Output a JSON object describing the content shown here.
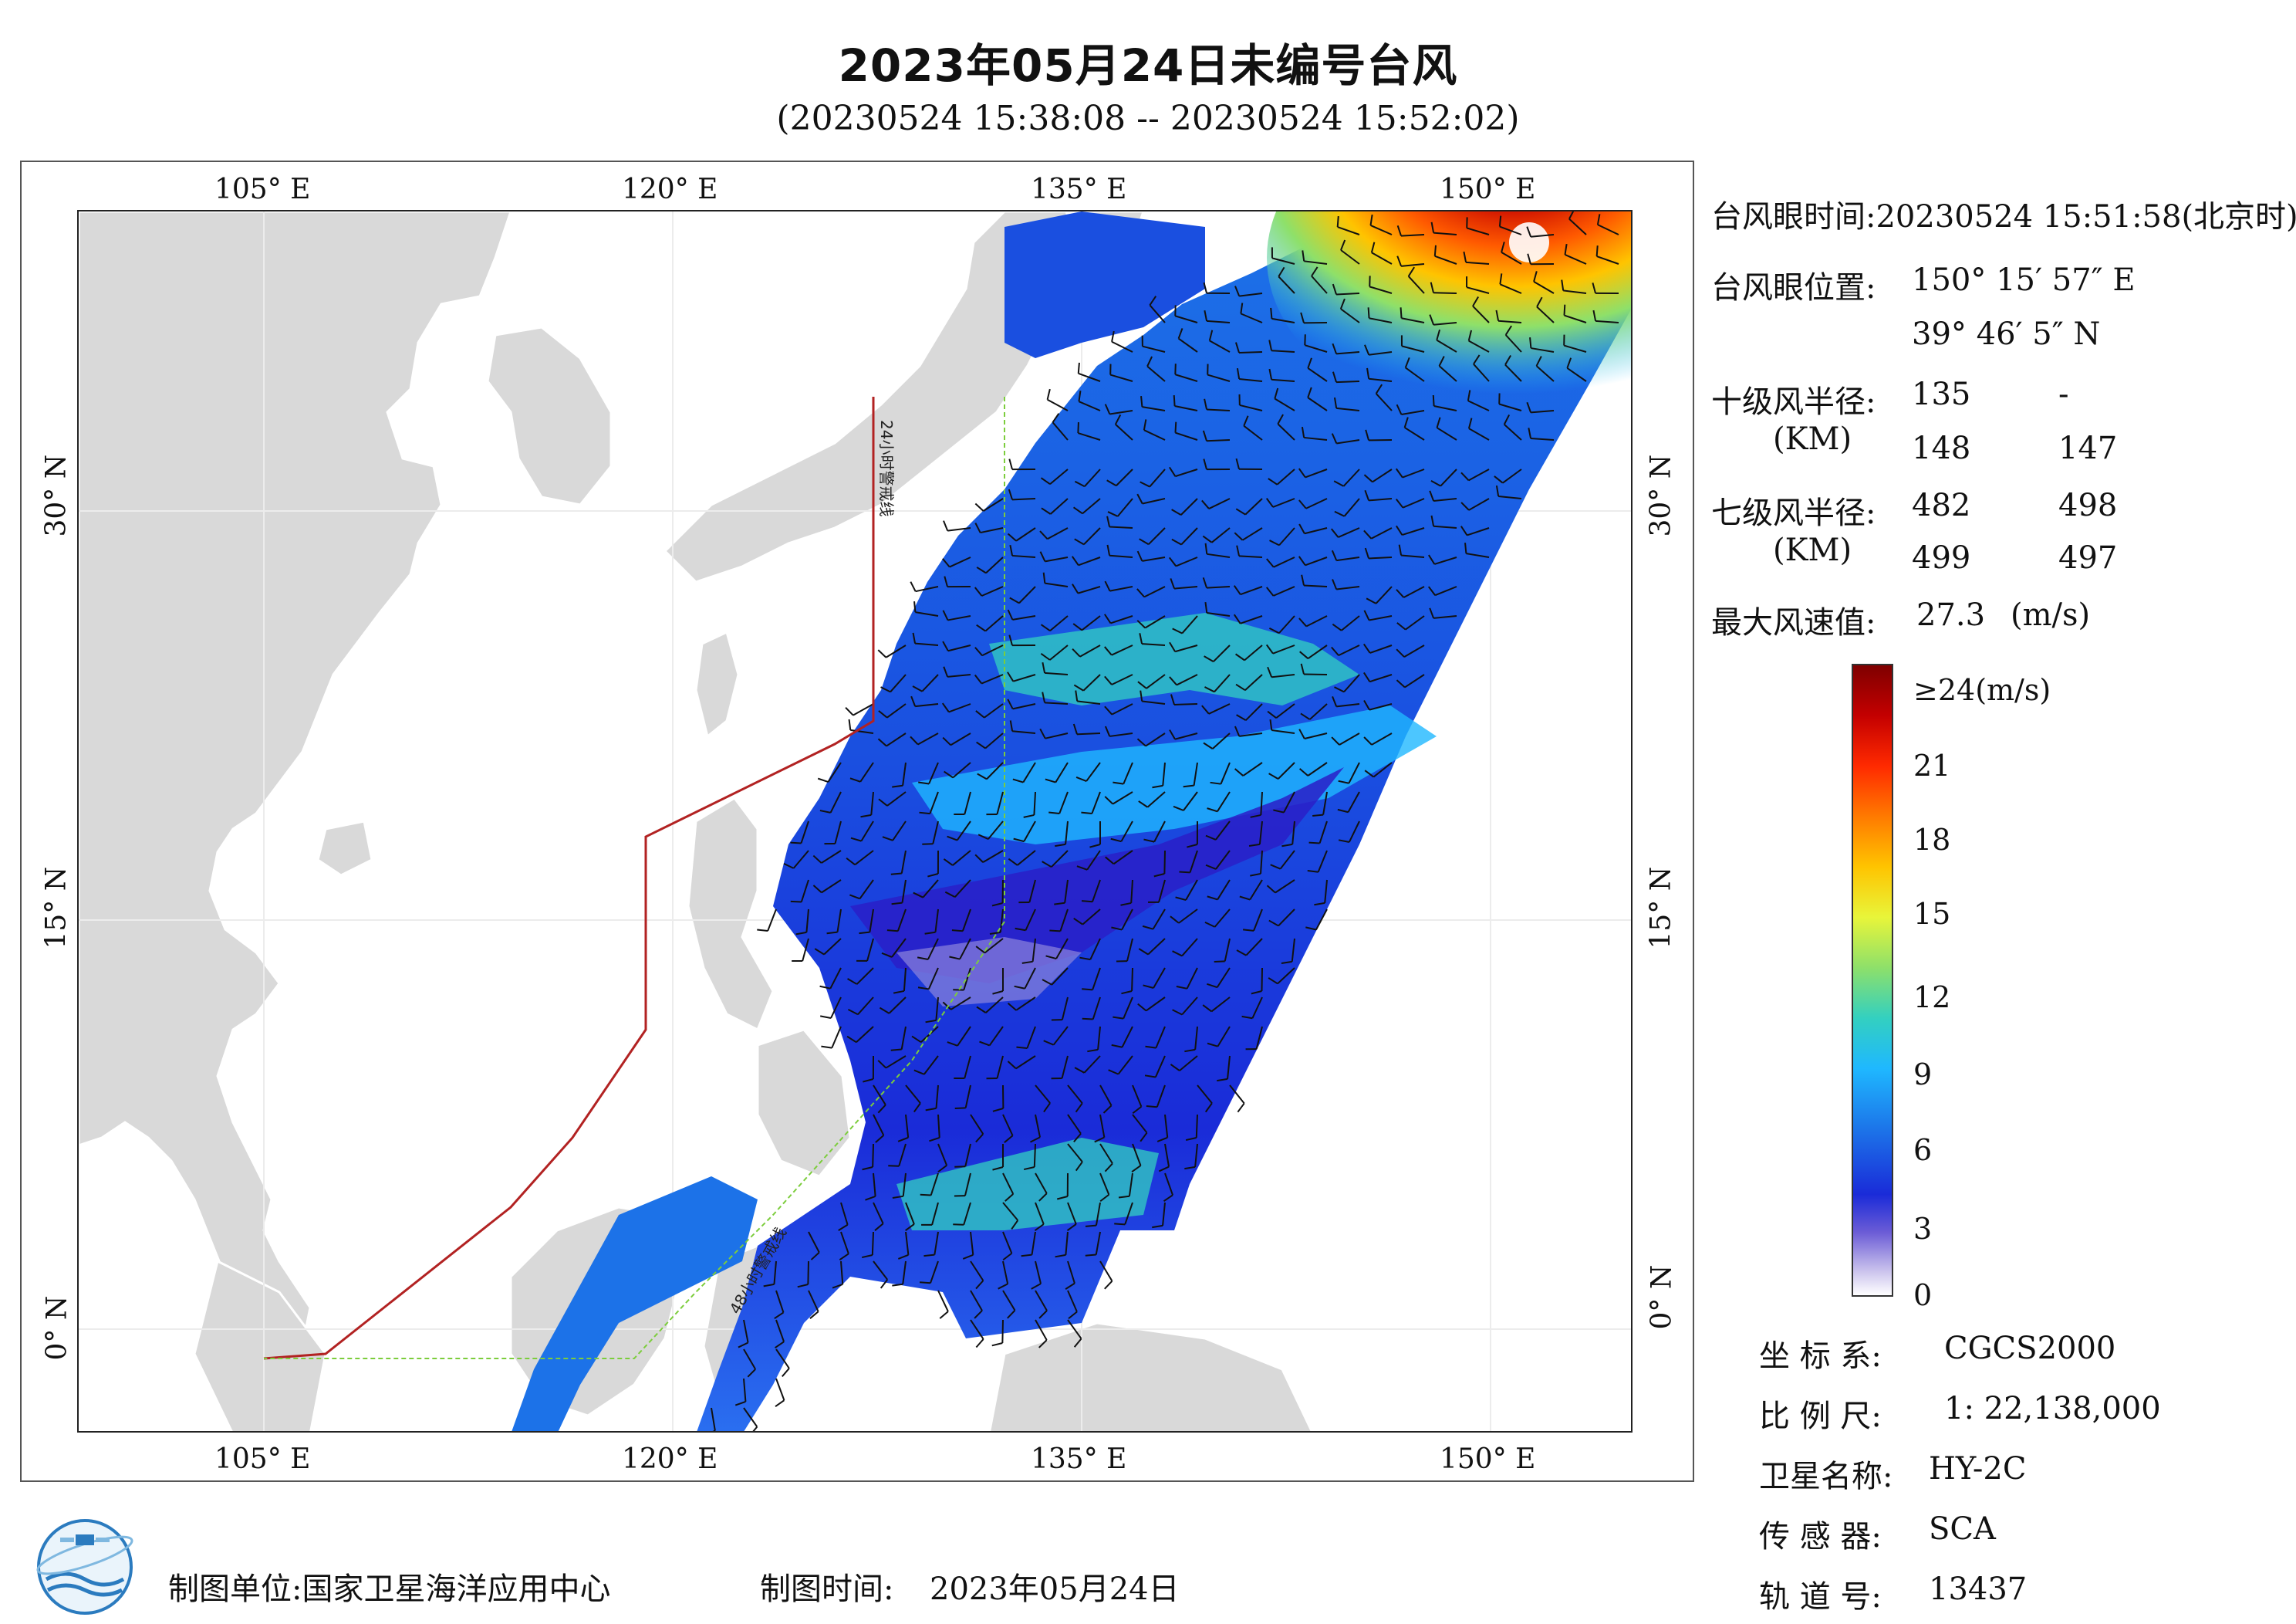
{
  "header": {
    "title": "2023年05月24日未编号台风",
    "subtitle": "(20230524 15:38:08 -- 20230524 15:52:02)"
  },
  "map": {
    "lon_ticks_top": [
      "105° E",
      "120° E",
      "135° E",
      "150° E"
    ],
    "lon_ticks_bottom": [
      "105° E",
      "120° E",
      "135° E",
      "150° E"
    ],
    "lat_ticks_left": [
      "30° N",
      "15° N",
      "0° N"
    ],
    "lat_ticks_right": [
      "30° N",
      "15° N",
      "0° N"
    ],
    "line_label_24h": "24小时警戒线",
    "line_label_48h": "48小时警戒线",
    "colors": {
      "land": "#d9d9d9",
      "sea": "#ffffff",
      "warning_line_24h": "#b22222",
      "warning_line_48h": "#7ccd3c",
      "wind_barb": "#111111"
    }
  },
  "info_panel": {
    "eye_time_label": "台风眼时间:",
    "eye_time_value": "20230524 15:51:58(北京时)",
    "eye_pos_label": "台风眼位置:",
    "eye_lon": "150° 15′ 57″ E",
    "eye_lat": "39° 46′ 5″ N",
    "r10_label": "十级风半径:",
    "r10_unit": "(KM)",
    "r10_values": [
      "135",
      "-",
      "148",
      "147"
    ],
    "r7_label": "七级风半径:",
    "r7_unit": "(KM)",
    "r7_values": [
      "482",
      "498",
      "499",
      "497"
    ],
    "max_wind_label": "最大风速值:",
    "max_wind_value": "27.3",
    "max_wind_unit": "(m/s)"
  },
  "colorbar": {
    "labels": [
      "≥24(m/s)",
      "21",
      "18",
      "15",
      "12",
      "9",
      "6",
      "3",
      "0"
    ]
  },
  "meta_panel": {
    "crs_label": "坐 标 系:",
    "crs_value": "CGCS2000",
    "scale_label": "比 例 尺:",
    "scale_value": "1: 22,138,000",
    "satellite_label": "卫星名称:",
    "satellite_value": "HY-2C",
    "sensor_label": "传 感 器:",
    "sensor_value": "SCA",
    "orbit_label": "轨 道 号:",
    "orbit_value": "13437"
  },
  "footer": {
    "org_label": "制图单位:",
    "org_value": "国家卫星海洋应用中心",
    "date_label": "制图时间:",
    "date_value": "2023年05月24日"
  }
}
